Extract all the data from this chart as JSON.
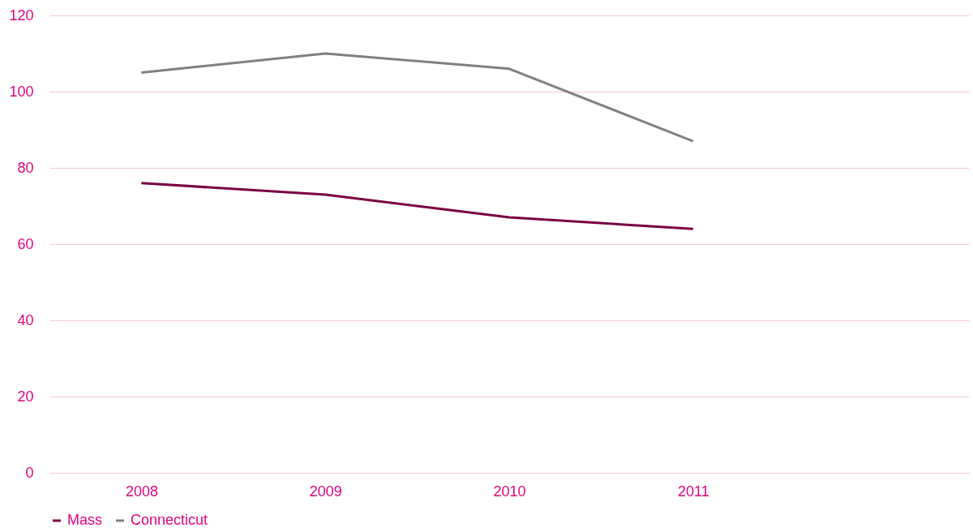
{
  "chart_data": {
    "type": "line",
    "categories": [
      "2008",
      "2009",
      "2010",
      "2011",
      null
    ],
    "series": [
      {
        "name": "Mass",
        "color": "#7b0041",
        "values": [
          76,
          73,
          67,
          64,
          null
        ]
      },
      {
        "name": "Connecticut",
        "color": "#808080",
        "values": [
          105,
          110,
          106,
          87,
          null
        ]
      }
    ],
    "ylim": [
      0,
      120
    ],
    "yticks": [
      0,
      20,
      40,
      60,
      80,
      100,
      120
    ],
    "grid": "y",
    "legend": "bottom",
    "marker": "none",
    "line_style": "solid"
  }
}
